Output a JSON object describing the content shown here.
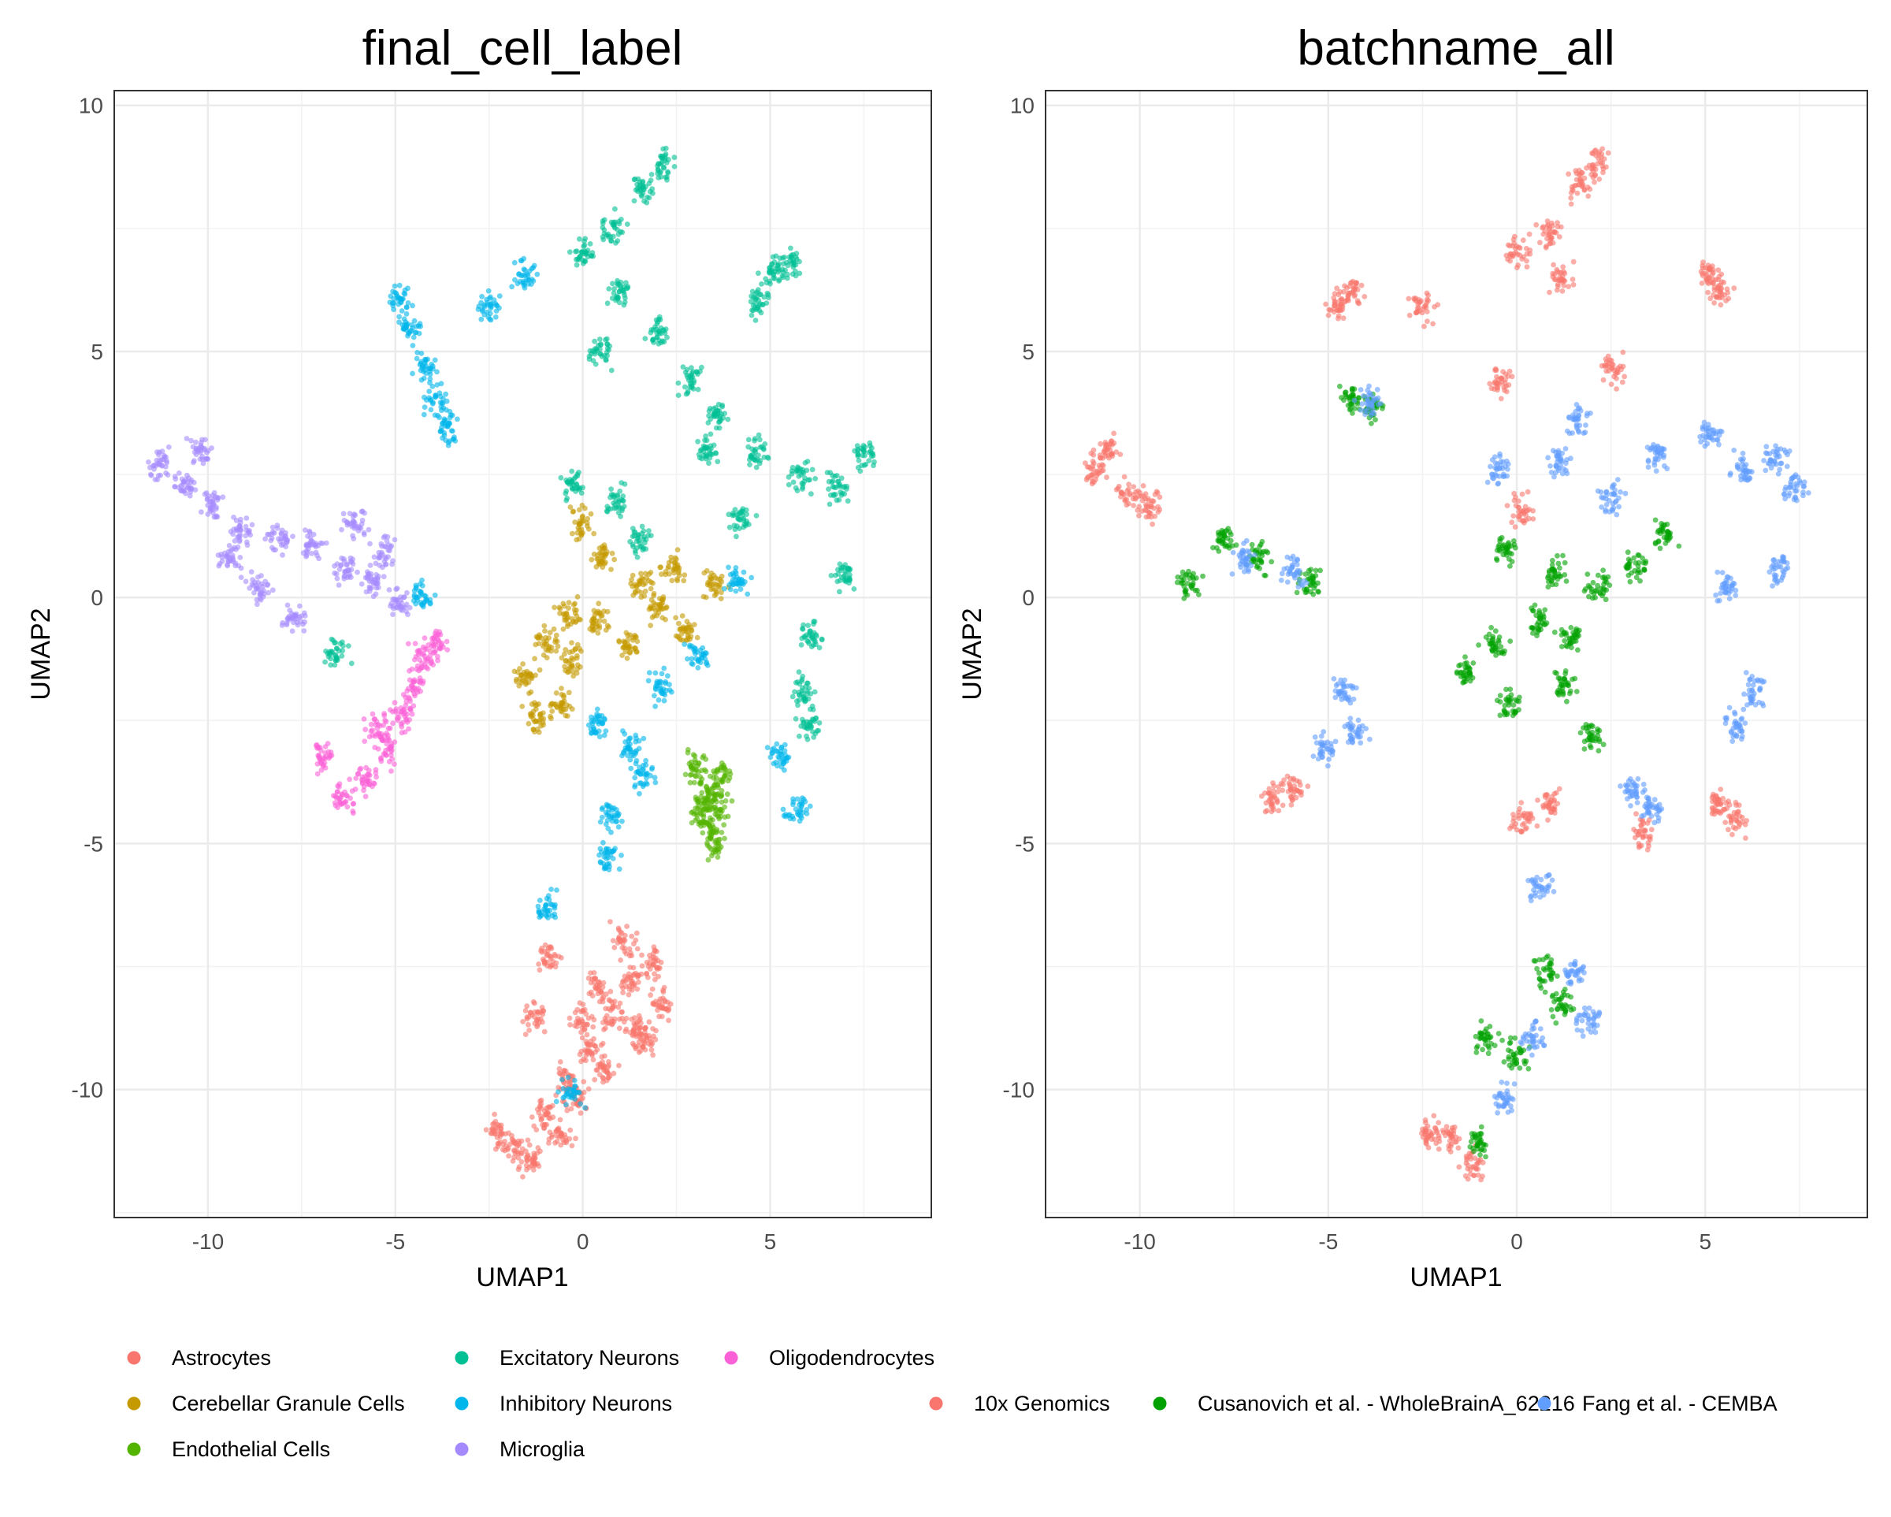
{
  "chart_data": [
    {
      "type": "scatter",
      "title": "final_cell_label",
      "xlabel": "UMAP1",
      "ylabel": "UMAP2",
      "xlim": [
        -12.5,
        9.3
      ],
      "ylim": [
        -12.6,
        10.3
      ],
      "xticks": [
        -10,
        -5,
        0,
        5
      ],
      "yticks": [
        -10,
        -5,
        0,
        5,
        10
      ],
      "grid": true,
      "legend": "bottom",
      "series": [
        {
          "name": "Astrocytes",
          "color": "#F8766D",
          "points": [
            [
              -1.8,
              -11.2
            ],
            [
              -1.0,
              -10.5
            ],
            [
              -0.4,
              -9.8
            ],
            [
              0.2,
              -9.2
            ],
            [
              0.8,
              -8.5
            ],
            [
              1.3,
              -7.8
            ],
            [
              1.9,
              -7.4
            ],
            [
              1.5,
              -8.8
            ],
            [
              0.6,
              -9.6
            ],
            [
              -0.6,
              -10.9
            ],
            [
              -2.3,
              -10.9
            ],
            [
              -1.4,
              -11.5
            ],
            [
              0.0,
              -8.6
            ],
            [
              1.1,
              -7.0
            ],
            [
              2.1,
              -8.3
            ],
            [
              -0.9,
              -7.3
            ],
            [
              -1.3,
              -8.5
            ],
            [
              0.4,
              -7.9
            ],
            [
              1.7,
              -9.0
            ],
            [
              -0.2,
              -10.2
            ]
          ]
        },
        {
          "name": "Cerebellar Granule Cells",
          "color": "#C49A00",
          "points": [
            [
              -1.5,
              -1.6
            ],
            [
              -1.0,
              -0.9
            ],
            [
              -0.6,
              -2.2
            ],
            [
              -0.2,
              -1.3
            ],
            [
              0.5,
              -0.5
            ],
            [
              1.2,
              -0.9
            ],
            [
              2.0,
              -0.2
            ],
            [
              2.7,
              -0.7
            ],
            [
              3.5,
              0.2
            ],
            [
              0.0,
              1.5
            ],
            [
              0.5,
              0.8
            ],
            [
              -0.4,
              -0.3
            ],
            [
              1.6,
              0.3
            ],
            [
              2.4,
              0.6
            ],
            [
              -1.3,
              -2.4
            ]
          ]
        },
        {
          "name": "Endothelial Cells",
          "color": "#53B400",
          "points": [
            [
              3.0,
              -3.4
            ],
            [
              3.3,
              -4.0
            ],
            [
              3.4,
              -4.6
            ],
            [
              3.5,
              -5.0
            ],
            [
              3.7,
              -3.6
            ],
            [
              3.2,
              -4.3
            ],
            [
              3.6,
              -4.2
            ]
          ]
        },
        {
          "name": "Excitatory Neurons",
          "color": "#00C094",
          "points": [
            [
              0.0,
              7.0
            ],
            [
              0.8,
              7.5
            ],
            [
              1.6,
              8.3
            ],
            [
              2.2,
              8.8
            ],
            [
              1.0,
              6.2
            ],
            [
              2.0,
              5.4
            ],
            [
              2.9,
              4.4
            ],
            [
              3.6,
              3.7
            ],
            [
              4.7,
              2.9
            ],
            [
              5.8,
              2.5
            ],
            [
              6.8,
              2.2
            ],
            [
              7.5,
              2.9
            ],
            [
              5.1,
              6.6
            ],
            [
              4.7,
              6.0
            ],
            [
              5.5,
              6.8
            ],
            [
              6.1,
              -0.8
            ],
            [
              5.9,
              -1.9
            ],
            [
              6.0,
              -2.6
            ],
            [
              0.9,
              2.0
            ],
            [
              1.5,
              1.2
            ],
            [
              7.0,
              0.5
            ],
            [
              3.3,
              3.0
            ],
            [
              -0.3,
              2.3
            ],
            [
              -6.6,
              -1.1
            ],
            [
              4.2,
              1.6
            ],
            [
              0.5,
              5.0
            ]
          ]
        },
        {
          "name": "Inhibitory Neurons",
          "color": "#00B6EB",
          "points": [
            [
              -4.9,
              6.1
            ],
            [
              -4.6,
              5.5
            ],
            [
              -4.2,
              4.7
            ],
            [
              -3.9,
              4.0
            ],
            [
              -3.6,
              3.4
            ],
            [
              -2.5,
              5.9
            ],
            [
              -1.5,
              6.6
            ],
            [
              1.3,
              -3.0
            ],
            [
              0.4,
              -2.6
            ],
            [
              2.1,
              -1.8
            ],
            [
              4.1,
              0.3
            ],
            [
              5.2,
              -3.2
            ],
            [
              5.7,
              -4.3
            ],
            [
              0.7,
              -4.4
            ],
            [
              -0.3,
              -10.1
            ],
            [
              -0.9,
              -6.3
            ],
            [
              0.7,
              -5.3
            ],
            [
              -4.3,
              0.0
            ],
            [
              3.1,
              -1.2
            ],
            [
              1.6,
              -3.6
            ]
          ]
        },
        {
          "name": "Microglia",
          "color": "#A58AFF",
          "points": [
            [
              -11.3,
              2.7
            ],
            [
              -10.6,
              2.3
            ],
            [
              -9.9,
              1.9
            ],
            [
              -9.1,
              1.4
            ],
            [
              -8.1,
              1.2
            ],
            [
              -7.2,
              1.0
            ],
            [
              -6.3,
              0.6
            ],
            [
              -5.6,
              0.3
            ],
            [
              -4.9,
              -0.1
            ],
            [
              -8.6,
              0.2
            ],
            [
              -7.7,
              -0.4
            ],
            [
              -6.1,
              1.5
            ],
            [
              -10.2,
              3.0
            ],
            [
              -9.4,
              0.8
            ],
            [
              -5.3,
              0.9
            ]
          ]
        },
        {
          "name": "Oligodendrocytes",
          "color": "#FB61D7",
          "points": [
            [
              -6.4,
              -4.1
            ],
            [
              -5.8,
              -3.7
            ],
            [
              -5.2,
              -3.1
            ],
            [
              -4.8,
              -2.4
            ],
            [
              -4.5,
              -1.8
            ],
            [
              -4.3,
              -1.2
            ],
            [
              -6.9,
              -3.2
            ],
            [
              -5.5,
              -2.7
            ],
            [
              -3.9,
              -0.9
            ]
          ]
        }
      ]
    },
    {
      "type": "scatter",
      "title": "batchname_all",
      "xlabel": "UMAP1",
      "ylabel": "UMAP2",
      "xlim": [
        -12.5,
        9.3
      ],
      "ylim": [
        -12.6,
        10.3
      ],
      "xticks": [
        -10,
        -5,
        0,
        5
      ],
      "yticks": [
        -10,
        -5,
        0,
        5,
        10
      ],
      "grid": true,
      "legend": "bottom",
      "series": [
        {
          "name": "10x Genomics",
          "color": "#F8766D",
          "points": [
            [
              -11.2,
              2.6
            ],
            [
              -10.3,
              2.1
            ],
            [
              -9.7,
              1.9
            ],
            [
              -10.8,
              3.0
            ],
            [
              0.0,
              7.0
            ],
            [
              0.9,
              7.4
            ],
            [
              1.7,
              8.4
            ],
            [
              2.2,
              8.8
            ],
            [
              1.2,
              6.5
            ],
            [
              5.1,
              6.6
            ],
            [
              5.4,
              6.2
            ],
            [
              -4.8,
              5.9
            ],
            [
              -4.4,
              6.2
            ],
            [
              -2.5,
              5.9
            ],
            [
              2.6,
              4.6
            ],
            [
              -6.5,
              -4.1
            ],
            [
              -5.9,
              -3.9
            ],
            [
              5.8,
              -4.5
            ],
            [
              5.4,
              -4.2
            ],
            [
              -1.8,
              -11.0
            ],
            [
              -1.2,
              -11.5
            ],
            [
              -2.3,
              -10.9
            ],
            [
              0.9,
              -4.2
            ],
            [
              0.2,
              -4.5
            ],
            [
              3.4,
              -4.8
            ],
            [
              -0.4,
              4.4
            ],
            [
              0.1,
              1.8
            ]
          ]
        },
        {
          "name": "Cusanovich et al. - WholeBrainA_62216",
          "color": "#00A100",
          "points": [
            [
              -1.4,
              -1.5
            ],
            [
              -0.6,
              -1.0
            ],
            [
              -0.2,
              -2.2
            ],
            [
              0.6,
              -0.5
            ],
            [
              1.4,
              -0.8
            ],
            [
              2.2,
              0.2
            ],
            [
              3.2,
              0.6
            ],
            [
              3.9,
              1.3
            ],
            [
              -7.8,
              1.2
            ],
            [
              -6.8,
              0.8
            ],
            [
              -5.5,
              0.3
            ],
            [
              -8.7,
              0.3
            ],
            [
              -4.4,
              4.0
            ],
            [
              -3.8,
              3.9
            ],
            [
              0.8,
              -7.6
            ],
            [
              1.2,
              -8.3
            ],
            [
              0.0,
              -9.3
            ],
            [
              -0.8,
              -9.0
            ],
            [
              -1.0,
              -11.1
            ],
            [
              1.3,
              -1.8
            ],
            [
              2.0,
              -2.8
            ],
            [
              -0.3,
              1.0
            ],
            [
              1.0,
              0.5
            ]
          ]
        },
        {
          "name": "Fang et al. - CEMBA",
          "color": "#619CFF",
          "points": [
            [
              6.0,
              2.6
            ],
            [
              6.9,
              2.8
            ],
            [
              7.4,
              2.2
            ],
            [
              5.1,
              3.3
            ],
            [
              3.7,
              2.9
            ],
            [
              2.5,
              2.0
            ],
            [
              1.1,
              2.8
            ],
            [
              -0.5,
              2.6
            ],
            [
              5.6,
              0.2
            ],
            [
              6.3,
              -1.9
            ],
            [
              5.8,
              -2.6
            ],
            [
              7.0,
              0.6
            ],
            [
              -4.6,
              -1.9
            ],
            [
              -4.3,
              -2.7
            ],
            [
              -5.1,
              -3.1
            ],
            [
              -3.9,
              4.0
            ],
            [
              1.5,
              -7.6
            ],
            [
              1.9,
              -8.6
            ],
            [
              0.4,
              -8.9
            ],
            [
              -0.3,
              -10.2
            ],
            [
              3.1,
              -3.9
            ],
            [
              3.6,
              -4.3
            ],
            [
              -7.2,
              0.8
            ],
            [
              -5.9,
              0.5
            ],
            [
              1.6,
              3.6
            ],
            [
              0.6,
              -5.8
            ]
          ]
        }
      ]
    }
  ],
  "legends": {
    "left": [
      {
        "label": "Astrocytes",
        "color": "#F8766D"
      },
      {
        "label": "Cerebellar Granule Cells",
        "color": "#C49A00"
      },
      {
        "label": "Endothelial Cells",
        "color": "#53B400"
      },
      {
        "label": "Excitatory Neurons",
        "color": "#00C094"
      },
      {
        "label": "Inhibitory Neurons",
        "color": "#00B6EB"
      },
      {
        "label": "Microglia",
        "color": "#A58AFF"
      },
      {
        "label": "Oligodendrocytes",
        "color": "#FB61D7"
      }
    ],
    "right": [
      {
        "label": "10x Genomics",
        "color": "#F8766D"
      },
      {
        "label": "Cusanovich et al. - WholeBrainA_62216",
        "color": "#00A100"
      },
      {
        "label": "Fang et al. - CEMBA",
        "color": "#619CFF"
      }
    ]
  }
}
